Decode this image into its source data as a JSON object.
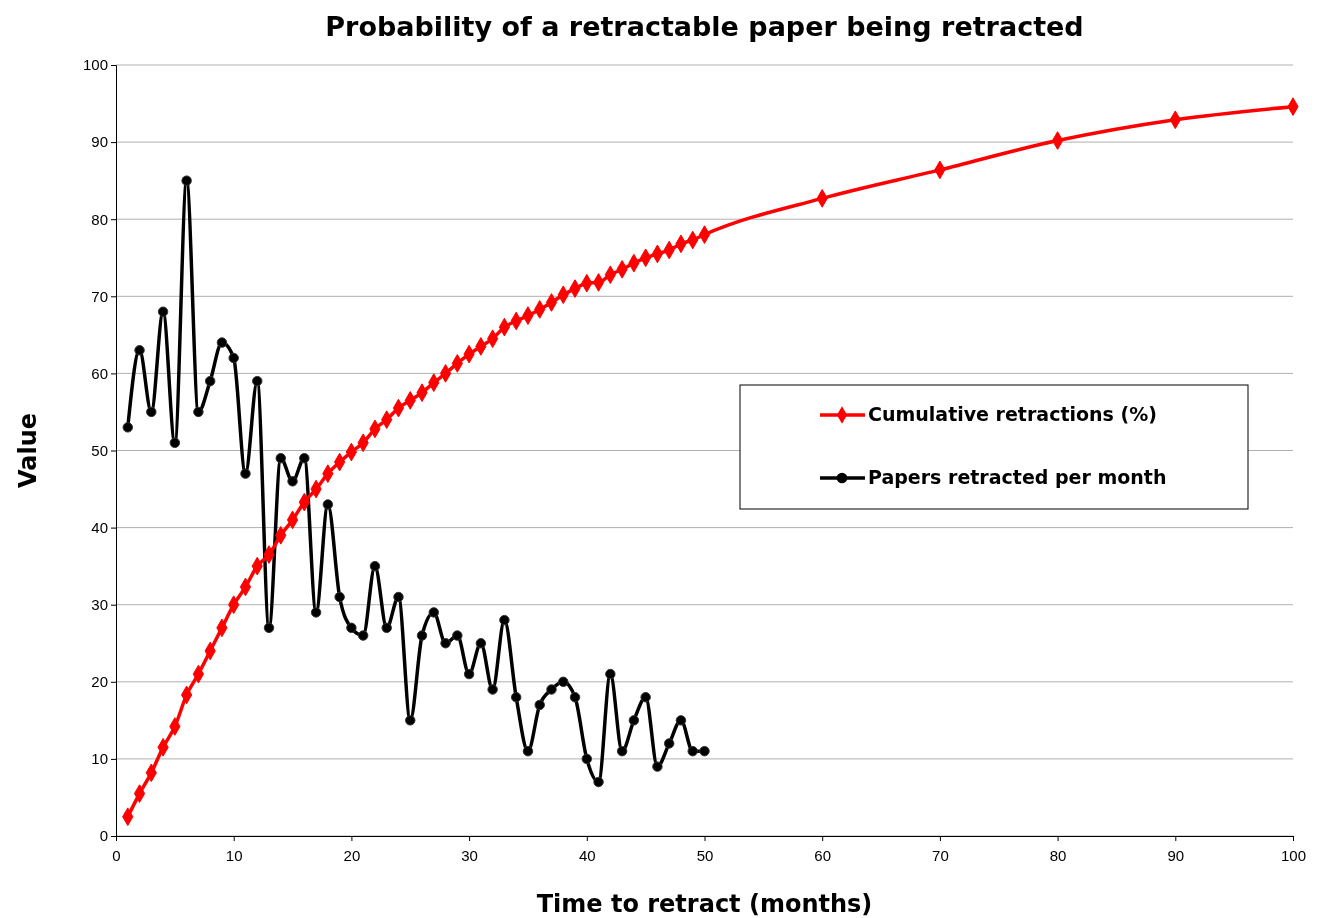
{
  "chart_data": {
    "type": "line",
    "title": "Probability of a retractable paper being retracted",
    "xlabel": "Time to retract (months)",
    "ylabel": "Value",
    "xlim": [
      0,
      100
    ],
    "xticks": [
      0,
      10,
      20,
      30,
      40,
      50,
      60,
      70,
      80,
      90,
      100
    ],
    "ylim": [
      0,
      100
    ],
    "yticks": [
      0,
      10,
      20,
      30,
      40,
      50,
      60,
      70,
      80,
      90,
      100
    ],
    "grid": "y",
    "legend": "right",
    "series": [
      {
        "name": "Cumulative retractions (%)",
        "color": "#ff0000",
        "marker": "diamond",
        "x": [
          1,
          2,
          3,
          4,
          5,
          6,
          7,
          8,
          9,
          10,
          11,
          12,
          13,
          14,
          15,
          16,
          17,
          18,
          19,
          20,
          21,
          22,
          23,
          24,
          25,
          26,
          27,
          28,
          29,
          30,
          31,
          32,
          33,
          34,
          35,
          36,
          37,
          38,
          39,
          40,
          41,
          42,
          43,
          44,
          45,
          46,
          47,
          48,
          49,
          50,
          60,
          70,
          80,
          90,
          100
        ],
        "values": [
          2.5,
          5.5,
          8.2,
          11.5,
          14.2,
          18.3,
          21,
          24,
          27,
          30,
          32.3,
          35,
          36.5,
          39,
          41,
          43.3,
          45,
          47,
          48.5,
          49.8,
          51,
          52.8,
          54,
          55.5,
          56.5,
          57.5,
          58.8,
          60,
          61.3,
          62.5,
          63.5,
          64.5,
          66,
          66.8,
          67.5,
          68.3,
          69.2,
          70.2,
          71,
          71.7,
          71.8,
          72.8,
          73.5,
          74.3,
          75,
          75.5,
          76,
          76.8,
          77.3,
          78,
          82.7,
          86.4,
          90.2,
          92.9,
          94.6
        ]
      },
      {
        "name": "Papers retracted per month",
        "color": "#000000",
        "marker": "circle",
        "x": [
          1,
          2,
          3,
          4,
          5,
          6,
          7,
          8,
          9,
          10,
          11,
          12,
          13,
          14,
          15,
          16,
          17,
          18,
          19,
          20,
          21,
          22,
          23,
          24,
          25,
          26,
          27,
          28,
          29,
          30,
          31,
          32,
          33,
          34,
          35,
          36,
          37,
          38,
          39,
          40,
          41,
          42,
          43,
          44,
          45,
          46,
          47,
          48,
          49,
          50
        ],
        "values": [
          53,
          63,
          55,
          68,
          51,
          85,
          55,
          59,
          64,
          62,
          47,
          59,
          27,
          49,
          46,
          49,
          29,
          43,
          31,
          27,
          26,
          35,
          27,
          31,
          15,
          26,
          29,
          25,
          26,
          21,
          25,
          19,
          28,
          18,
          11,
          17,
          19,
          20,
          18,
          10,
          7,
          21,
          11,
          15,
          18,
          9,
          12,
          15,
          11,
          11
        ]
      }
    ]
  }
}
